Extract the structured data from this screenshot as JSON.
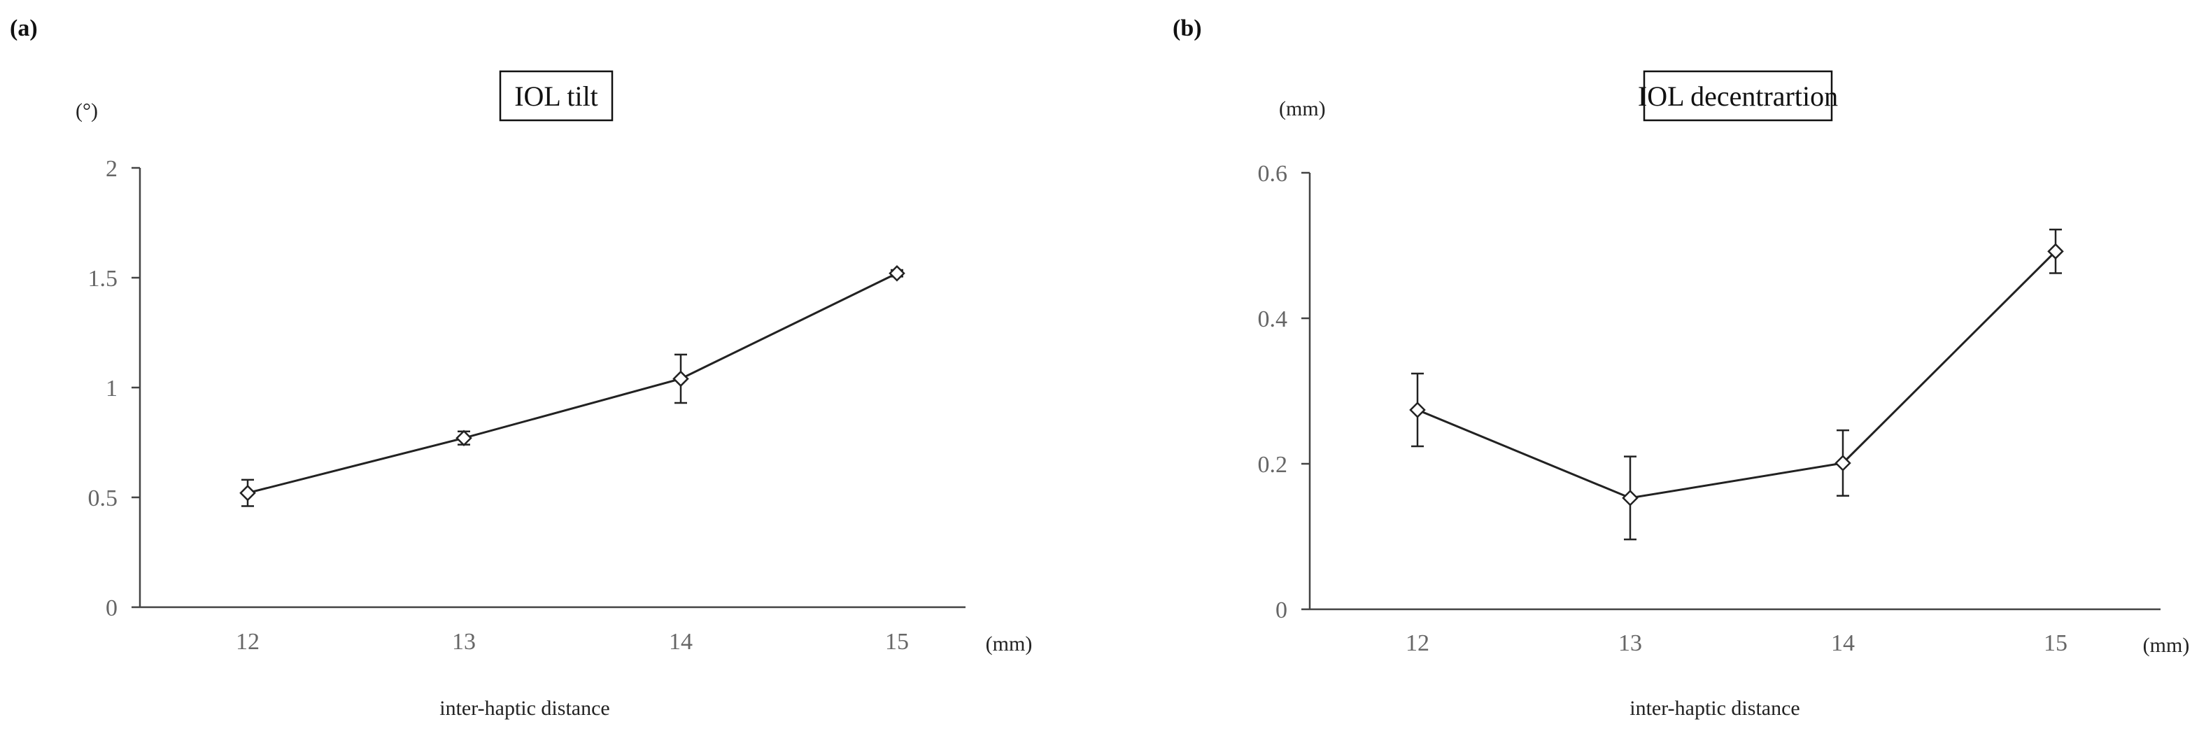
{
  "panels": [
    {
      "label": "(a)",
      "chart_data": {
        "type": "line",
        "title": "IOL tilt",
        "ylabel": "(°)",
        "xlabel": "inter-haptic distance",
        "xunit": "(mm)",
        "categories": [
          "12",
          "13",
          "14",
          "15"
        ],
        "ylim": [
          0,
          2
        ],
        "yticks": [
          0,
          0.5,
          1,
          1.5,
          2
        ],
        "ytick_labels": [
          "0",
          "0.5",
          "1",
          "1.5",
          "2"
        ],
        "grid": false,
        "marker": "open-diamond",
        "series": [
          {
            "values": [
              0.52,
              0.77,
              1.04,
              1.52
            ],
            "errors": [
              0.06,
              0.03,
              0.11,
              0.015
            ]
          }
        ]
      }
    },
    {
      "label": "(b)",
      "chart_data": {
        "type": "line",
        "title": "IOL decentrartion",
        "ylabel": "(mm)",
        "xlabel": "inter-haptic distance",
        "xunit": "(mm)",
        "categories": [
          "12",
          "13",
          "14",
          "15"
        ],
        "ylim": [
          0,
          0.6
        ],
        "yticks": [
          0,
          0.2,
          0.4,
          0.6
        ],
        "ytick_labels": [
          "0",
          "0.2",
          "0.4",
          "0.6"
        ],
        "grid": false,
        "marker": "open-diamond",
        "series": [
          {
            "values": [
              0.274,
              0.153,
              0.201,
              0.492
            ],
            "errors": [
              0.05,
              0.057,
              0.045,
              0.03
            ]
          }
        ]
      }
    }
  ]
}
